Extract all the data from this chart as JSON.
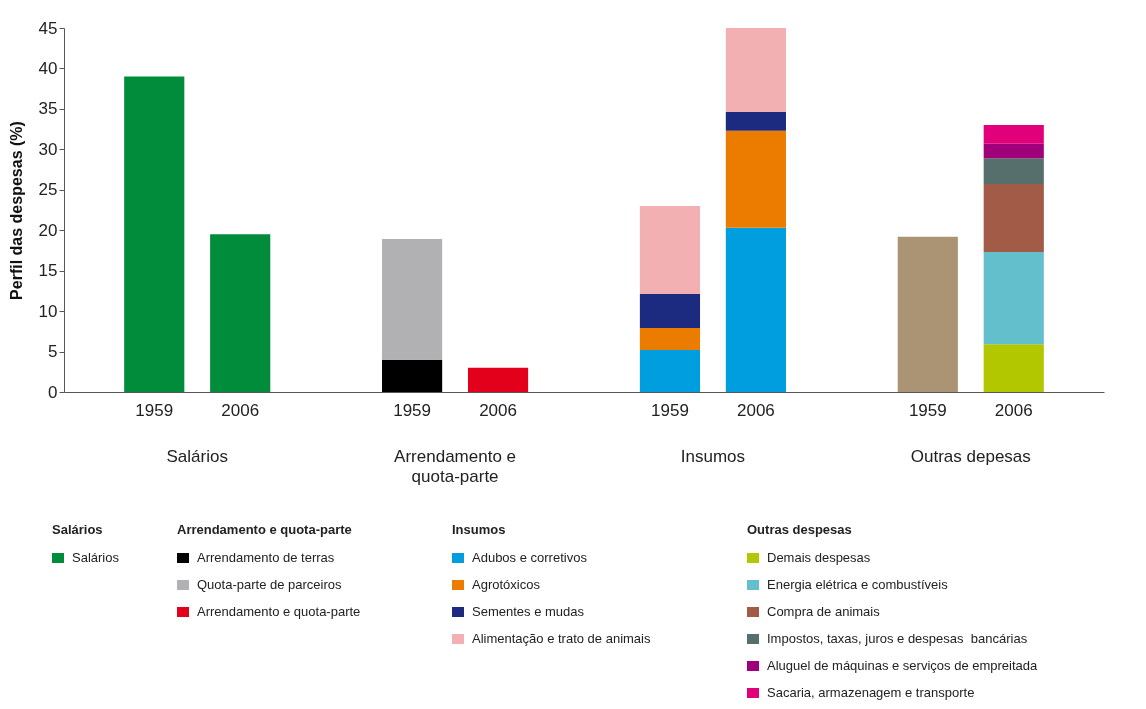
{
  "chart_data": {
    "type": "bar",
    "stacked": true,
    "ylabel": "Perfil das despesas (%)",
    "categories": [
      "1959",
      "2006",
      "1959",
      "2006",
      "1959",
      "2006",
      "1959",
      "2006"
    ],
    "ylim": [
      0,
      45
    ],
    "yticks": [
      0,
      5,
      10,
      15,
      20,
      25,
      30,
      35,
      40,
      45
    ],
    "legend": "bottom",
    "annotations": [
      "Salários",
      "Arrendamento e\nquota-parte",
      "Insumos",
      "Outras depesas",
      "Salários",
      "Arrendamento e quota-parte",
      "Insumos",
      "Outras despesas"
    ],
    "series": [
      {
        "name": "Salários",
        "color": "#008c3a",
        "values": [
          39,
          19.5,
          null,
          null,
          null,
          null,
          null,
          null
        ]
      },
      {
        "name": "Arrendamento de terras",
        "color": "#000000",
        "values": [
          null,
          null,
          4,
          null,
          null,
          null,
          null,
          null
        ]
      },
      {
        "name": "Quota-parte de parceiros",
        "color": "#b1b1b3",
        "values": [
          null,
          null,
          14.9,
          null,
          null,
          null,
          null,
          null
        ]
      },
      {
        "name": "Arrendamento e quota-parte",
        "color": "#e2001a",
        "values": [
          null,
          null,
          null,
          3,
          null,
          null,
          null,
          null
        ]
      },
      {
        "name": "Adubos e corretivos",
        "color": "#009ddf",
        "values": [
          null,
          null,
          null,
          null,
          5.2,
          20.3,
          null,
          null
        ]
      },
      {
        "name": "Agrotóxicos",
        "color": "#ec7c00",
        "values": [
          null,
          null,
          null,
          null,
          2.7,
          12,
          null,
          null
        ]
      },
      {
        "name": "Sementes e mudas",
        "color": "#1c2a80",
        "values": [
          null,
          null,
          null,
          null,
          4.2,
          2.3,
          null,
          null
        ]
      },
      {
        "name": "Alimentação e trato de animais",
        "color": "#f2b0b2",
        "values": [
          null,
          null,
          null,
          null,
          10.9,
          10.4,
          null,
          null
        ]
      },
      {
        "color": "#ab9474",
        "values": [
          null,
          null,
          null,
          null,
          null,
          null,
          19.2,
          null
        ]
      },
      {
        "name": "Demais despesas",
        "color": "#b2c700",
        "values": [
          null,
          null,
          null,
          null,
          null,
          null,
          null,
          5.9
        ]
      },
      {
        "name": "Energia elétrica e combustíveis",
        "color": "#63bfcc",
        "values": [
          null,
          null,
          null,
          null,
          null,
          null,
          null,
          11.4
        ]
      },
      {
        "name": "Compra de animais",
        "color": "#a15b46",
        "values": [
          null,
          null,
          null,
          null,
          null,
          null,
          null,
          8.4
        ]
      },
      {
        "name": "Impostos, taxas, juros e despesas  bancárias",
        "color": "#566e6c",
        "values": [
          null,
          null,
          null,
          null,
          null,
          null,
          null,
          3.2
        ]
      },
      {
        "name": "Aluguel de máquinas e serviços de empreitada",
        "color": "#a0007a",
        "values": [
          null,
          null,
          null,
          null,
          null,
          null,
          null,
          1.8
        ]
      },
      {
        "name": "Sacaria, armazenagem e transporte",
        "color": "#e2007a",
        "values": [
          null,
          null,
          null,
          null,
          null,
          null,
          null,
          2.3
        ]
      }
    ]
  }
}
